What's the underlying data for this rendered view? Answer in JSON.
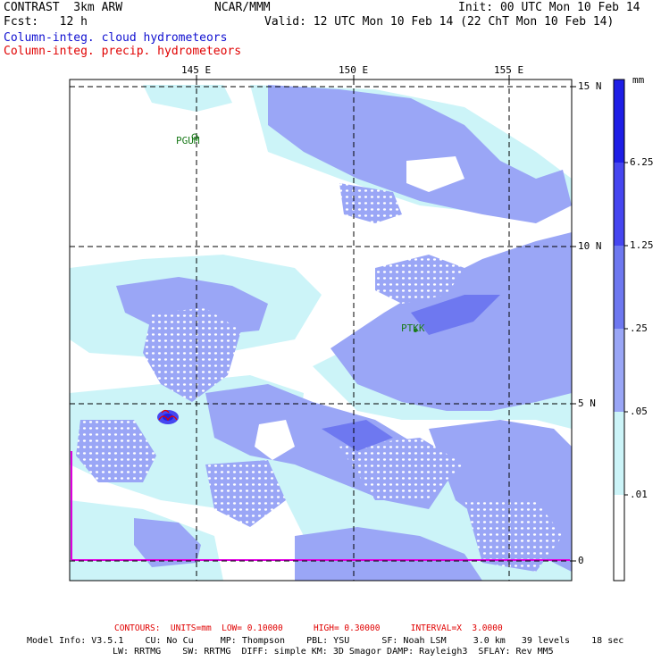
{
  "header": {
    "left_line1": "CONTRAST  3km ARW",
    "center_line1": "NCAR/MMM",
    "right_line1": "Init: 00 UTC Mon 10 Feb 14",
    "left_line2": "Fcst:   12 h",
    "right_line2": "Valid: 12 UTC Mon 10 Feb 14 (22 ChT Mon 10 Feb 14)",
    "legend_cloud": "Column-integ. cloud hydrometeors",
    "legend_precip": "Column-integ. precip. hydrometeors"
  },
  "map": {
    "lon_labels": [
      "145 E",
      "150 E",
      "155 E"
    ],
    "lat_labels": [
      "15 N",
      "10 N",
      "5 N",
      "0"
    ],
    "stations": [
      {
        "id": "PGUM"
      },
      {
        "id": "PTKK"
      }
    ]
  },
  "colorbar": {
    "unit": "mm",
    "levels": [
      "6.25",
      "1.25",
      ".25",
      ".05",
      ".01"
    ],
    "colors": [
      "#1e1ee6",
      "#4646f0",
      "#6e78f0",
      "#9aa6f6",
      "#ccf4f8",
      "#ffffff"
    ]
  },
  "footer": {
    "contours": "CONTOURS:  UNITS=mm  LOW= 0.10000      HIGH= 0.30000      INTERVAL=X  3.0000",
    "model_line1": "Model Info: V3.5.1    CU: No Cu     MP: Thompson    PBL: YSU      SF: Noah LSM     3.0 km   39 levels    18 sec",
    "model_line2": "LW: RRTMG    SW: RRTMG  DIFF: simple KM: 3D Smagor DAMP: Rayleigh3  SFLAY: Rev MM5"
  },
  "colors": {
    "cloud_light": "#ccf4f8",
    "cloud_medium": "#9aa6f6",
    "cloud_dark": "#4646f0",
    "precip": "#e00000",
    "grid": "#000000",
    "boundary": "#e000e0"
  }
}
